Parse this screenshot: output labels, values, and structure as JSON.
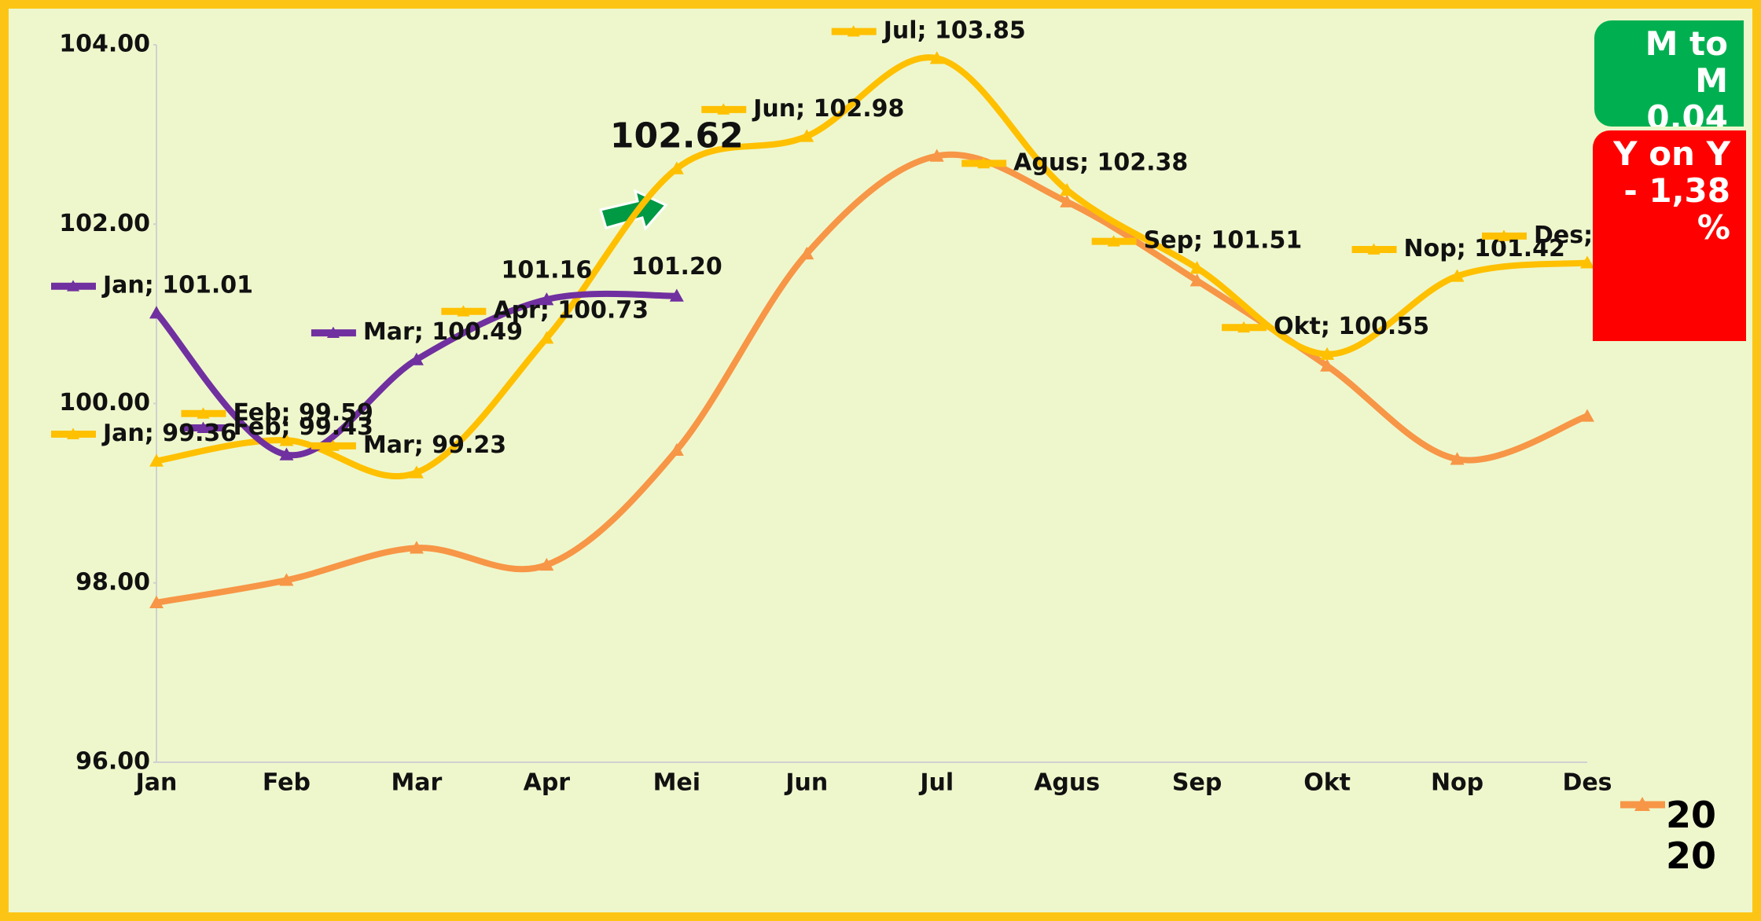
{
  "chart_data": {
    "type": "line",
    "categories": [
      "Jan",
      "Feb",
      "Mar",
      "Apr",
      "Mei",
      "Jun",
      "Jul",
      "Agus",
      "Sep",
      "Okt",
      "Nop",
      "Des"
    ],
    "ylim": [
      96,
      104
    ],
    "yticks": [
      {
        "value": 96,
        "label": "96.00"
      },
      {
        "value": 98,
        "label": "98.00"
      },
      {
        "value": 100,
        "label": "100.00"
      },
      {
        "value": 102,
        "label": "102.00"
      },
      {
        "value": 104,
        "label": "104.00"
      }
    ],
    "series": [
      {
        "color": "#7030a0",
        "values": [
          101.01,
          99.43,
          100.49,
          101.16,
          101.2,
          null,
          null,
          null,
          null,
          null,
          null,
          null
        ],
        "value_labels": [
          "Jan; 101.01",
          "Feb; 99.43",
          "Mar; 100.49",
          "101.16",
          "101.20",
          null,
          null,
          null,
          null,
          null,
          null,
          null
        ]
      },
      {
        "color": "#ffc000",
        "values": [
          99.36,
          99.59,
          99.23,
          100.73,
          102.62,
          102.98,
          103.85,
          102.38,
          101.51,
          100.55,
          101.42,
          101.57
        ],
        "value_labels": [
          "Jan; 99.36",
          "Feb; 99.59",
          "Mar; 99.23",
          "Apr; 100.73",
          "102.62",
          "Jun; 102.98",
          "Jul; 103.85",
          "Agus; 102.38",
          "Sep; 101.51",
          "Okt; 100.55",
          "Nop; 101.42",
          "Des;"
        ]
      },
      {
        "name": "2020",
        "color": "#f79646",
        "values": [
          97.78,
          98.03,
          98.39,
          98.2,
          99.48,
          101.67,
          102.76,
          102.25,
          101.37,
          100.42,
          99.38,
          99.86
        ]
      }
    ],
    "legend": "bottom-right",
    "annotations": [
      {
        "text": "M to M 0,04",
        "color": "#00b050"
      },
      {
        "text": "Y on Y - 1,38 %",
        "color": "#ff0000"
      }
    ]
  }
}
